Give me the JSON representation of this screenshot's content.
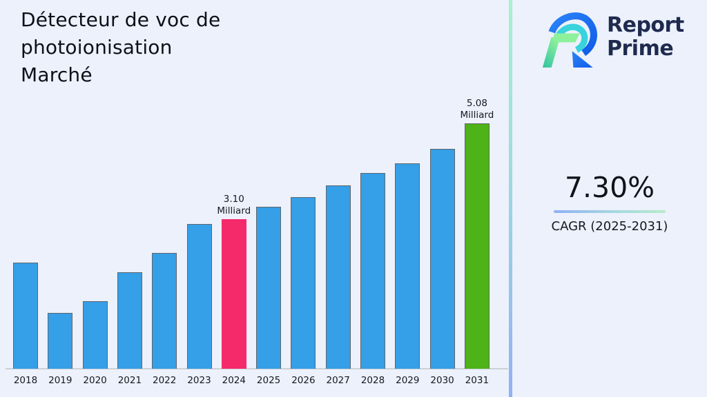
{
  "page": {
    "background_color": "#ecf1fb"
  },
  "title_lines": [
    "Détecteur de voc de",
    "photoionisation",
    "Marché"
  ],
  "logo": {
    "icon": "report-prime-monogram-icon",
    "line1": "Report",
    "line2": "Prime",
    "text_color": "#1e2a4e",
    "blue": "#1a6cf2",
    "cyan": "#38d3dd",
    "light_green": "#8df09b",
    "teal": "#2fc1a2"
  },
  "cagr": {
    "value": "7.30%",
    "label": "CAGR (2025-2031)",
    "underline_gradient": [
      "#8fb1f4",
      "#b6ecc9"
    ]
  },
  "divider_gradient": [
    "#a7f2ce",
    "#8fb1f4"
  ],
  "chart_data": {
    "type": "bar",
    "title": "Détecteur de voc de photoionisation Marché",
    "categories": [
      "2018",
      "2019",
      "2020",
      "2021",
      "2022",
      "2023",
      "2024",
      "2025",
      "2026",
      "2027",
      "2028",
      "2029",
      "2030",
      "2031"
    ],
    "values": [
      2.2,
      1.15,
      1.4,
      2.0,
      2.4,
      3.0,
      3.1,
      3.35,
      3.55,
      3.8,
      4.05,
      4.25,
      4.55,
      5.08
    ],
    "unit": "Milliard",
    "xlabel": "",
    "ylabel": "",
    "ylim": [
      0,
      5.6
    ],
    "grid": false,
    "legend": false,
    "default_color": "#359fe8",
    "bar_border_color": "#5f656b",
    "highlights": {
      "2024": {
        "color": "#f42a6b",
        "border": false
      },
      "2031": {
        "color": "#4db318",
        "border": true
      }
    },
    "annotations": [
      {
        "category": "2024",
        "lines": [
          "3.10",
          "Milliard"
        ]
      },
      {
        "category": "2031",
        "lines": [
          "5.08",
          "Milliard"
        ]
      }
    ]
  }
}
